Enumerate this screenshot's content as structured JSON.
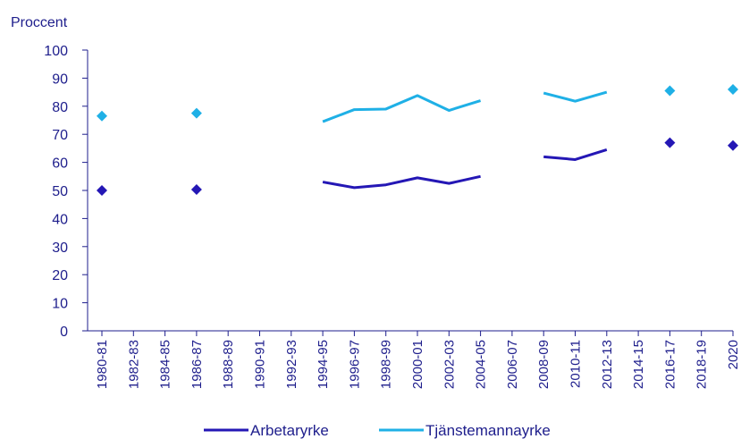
{
  "chart_data": {
    "type": "line",
    "ylabel": "Proccent",
    "ylim": [
      0,
      100
    ],
    "yticks": [
      "0",
      "10",
      "20",
      "30",
      "40",
      "50",
      "60",
      "70",
      "80",
      "90",
      "100"
    ],
    "categories": [
      "1980-81",
      "1982-83",
      "1984-85",
      "1986-87",
      "1988-89",
      "1990-91",
      "1992-93",
      "1994-95",
      "1996-97",
      "1998-99",
      "2000-01",
      "2002-03",
      "2004-05",
      "2006-07",
      "2008-09",
      "2010-11",
      "2012-13",
      "2014-15",
      "2016-17",
      "2018-19",
      "2020"
    ],
    "series": [
      {
        "name": "Arbetaryrke",
        "color": "#2417b5",
        "values": [
          50,
          null,
          null,
          50.3,
          null,
          null,
          null,
          53,
          51,
          52,
          54.5,
          52.5,
          55,
          null,
          62,
          61,
          64.5,
          null,
          67,
          null,
          66
        ]
      },
      {
        "name": "Tjänstemannayrke",
        "color": "#1fb0e6",
        "values": [
          76.5,
          null,
          null,
          77.5,
          null,
          null,
          null,
          74.5,
          78.8,
          79,
          83.8,
          78.5,
          82,
          null,
          84.7,
          81.8,
          85,
          null,
          85.5,
          null,
          86
        ]
      }
    ],
    "grid": false,
    "legend_position": "bottom"
  }
}
